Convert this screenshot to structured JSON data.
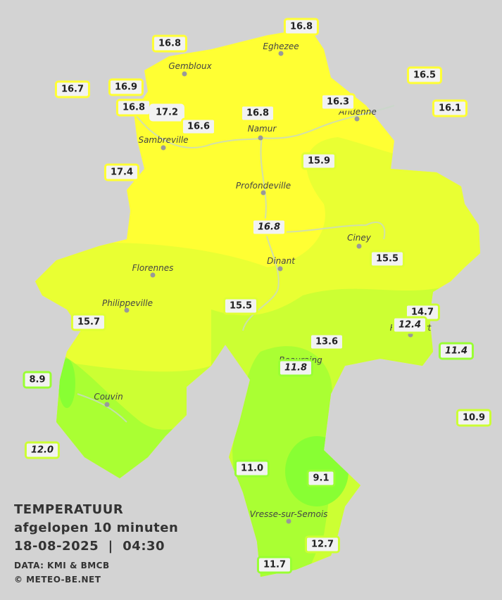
{
  "title": {
    "lines": [
      "TEMPERATUUR",
      "afgelopen 10 minuten",
      "18-08-2025  |  04:30"
    ],
    "credits": [
      "DATA: KMI & BMCB",
      "© METEO-BE.NET"
    ]
  },
  "towns": [
    "Eghezee",
    "Gembloux",
    "Andenne",
    "Namur",
    "Sambreville",
    "Profondeville",
    "Ciney",
    "Dinant",
    "Florennes",
    "Philippeville",
    "Rochefort",
    "Beauraing",
    "Couvin",
    "Vresse-sur-Semois"
  ],
  "stations": [
    {
      "temp": "16.8"
    },
    {
      "temp": "16.8"
    },
    {
      "temp": "16.5"
    },
    {
      "temp": "16.7"
    },
    {
      "temp": "16.9"
    },
    {
      "temp": "16.8"
    },
    {
      "temp": "17.2"
    },
    {
      "temp": "16.6"
    },
    {
      "temp": "16.8"
    },
    {
      "temp": "16.3"
    },
    {
      "temp": "16.1"
    },
    {
      "temp": "17.4"
    },
    {
      "temp": "15.9"
    },
    {
      "temp": "16.8",
      "italic": true
    },
    {
      "temp": "15.5"
    },
    {
      "temp": "15.5"
    },
    {
      "temp": "15.7"
    },
    {
      "temp": "14.7"
    },
    {
      "temp": "12.4",
      "italic": true
    },
    {
      "temp": "13.6"
    },
    {
      "temp": "11.4",
      "italic": true
    },
    {
      "temp": "11.8",
      "italic": true
    },
    {
      "temp": "8.9"
    },
    {
      "temp": "10.9"
    },
    {
      "temp": "12.0",
      "italic": true
    },
    {
      "temp": "11.0"
    },
    {
      "temp": "9.1"
    },
    {
      "temp": "12.7"
    },
    {
      "temp": "11.7"
    }
  ]
}
